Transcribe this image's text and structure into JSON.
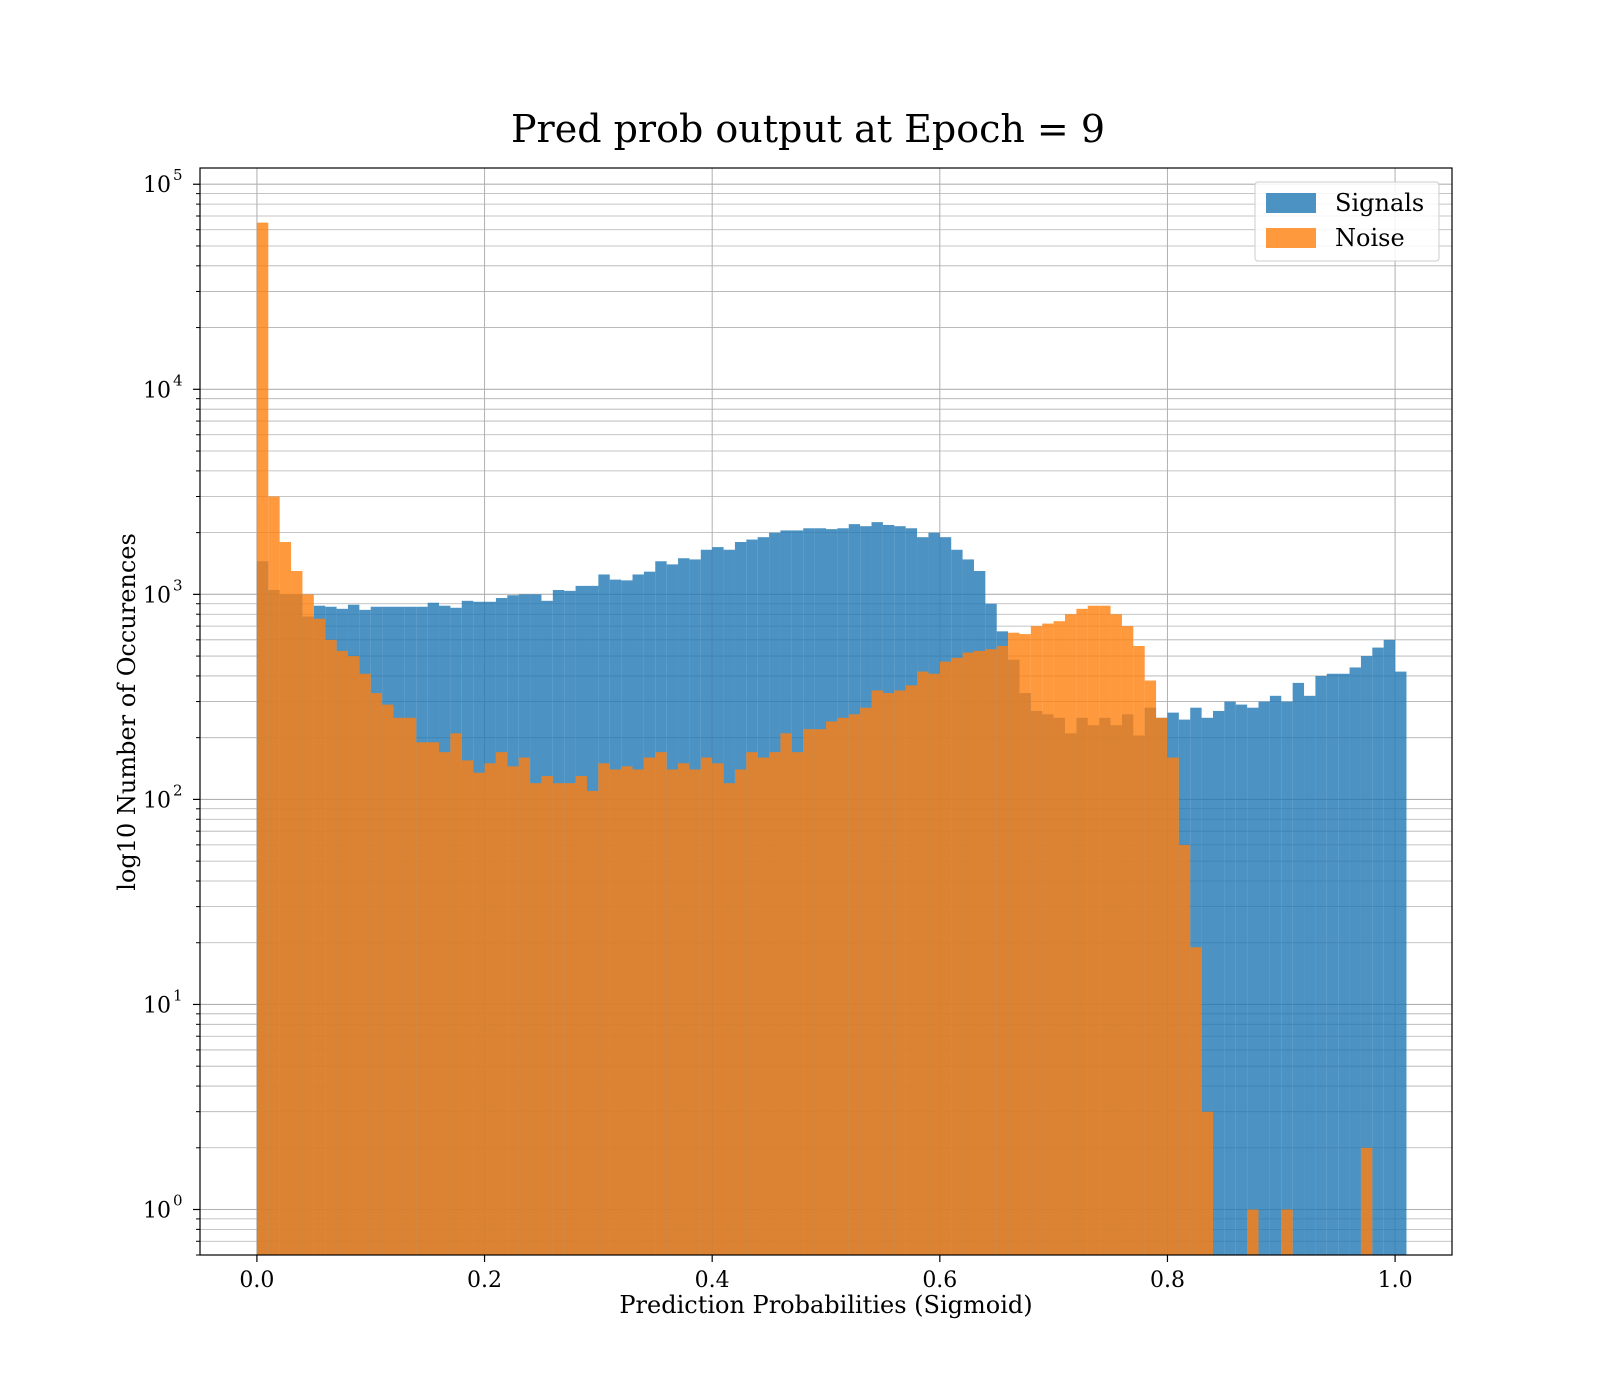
{
  "chart_data": {
    "type": "bar",
    "title": "Pred prob output at Epoch = 9",
    "xlabel": "Prediction Probabilities (Sigmoid)",
    "ylabel": "log10 Number of Occurences",
    "yscale": "log",
    "xlim": [
      -0.05,
      1.05
    ],
    "ylim": [
      0.6,
      120000
    ],
    "grid": true,
    "legend_position": "top-right",
    "bin_width": 0.01,
    "x_ticks": [
      {
        "value": 0.0,
        "label": "0.0"
      },
      {
        "value": 0.2,
        "label": "0.2"
      },
      {
        "value": 0.4,
        "label": "0.4"
      },
      {
        "value": 0.6,
        "label": "0.6"
      },
      {
        "value": 0.8,
        "label": "0.8"
      },
      {
        "value": 1.0,
        "label": "1.0"
      }
    ],
    "y_ticks": [
      {
        "value": 1,
        "base": "10",
        "exp": "0"
      },
      {
        "value": 10,
        "base": "10",
        "exp": "1"
      },
      {
        "value": 100,
        "base": "10",
        "exp": "2"
      },
      {
        "value": 1000,
        "base": "10",
        "exp": "3"
      },
      {
        "value": 10000,
        "base": "10",
        "exp": "4"
      },
      {
        "value": 100000,
        "base": "10",
        "exp": "5"
      }
    ],
    "series": [
      {
        "name": "Signals",
        "color": "#1f77b4",
        "values": [
          1450,
          1050,
          1000,
          1000,
          780,
          880,
          870,
          850,
          890,
          840,
          870,
          870,
          870,
          870,
          870,
          910,
          880,
          860,
          930,
          920,
          920,
          960,
          990,
          1000,
          1000,
          930,
          1050,
          1040,
          1100,
          1100,
          1250,
          1180,
          1170,
          1250,
          1290,
          1450,
          1400,
          1500,
          1480,
          1650,
          1700,
          1650,
          1800,
          1850,
          1900,
          2000,
          2050,
          2050,
          2100,
          2100,
          2080,
          2100,
          2200,
          2150,
          2250,
          2180,
          2150,
          2100,
          1900,
          2000,
          1900,
          1650,
          1480,
          1300,
          900,
          660,
          480,
          330,
          270,
          260,
          250,
          210,
          250,
          230,
          250,
          230,
          260,
          205,
          280,
          250,
          265,
          245,
          280,
          250,
          270,
          300,
          290,
          280,
          300,
          320,
          300,
          370,
          320,
          400,
          410,
          410,
          440,
          500,
          550,
          600,
          420
        ]
      },
      {
        "name": "Noise",
        "color": "#ff7f0e",
        "values": [
          65000,
          3000,
          1800,
          1300,
          1000,
          760,
          600,
          530,
          500,
          410,
          330,
          290,
          250,
          250,
          190,
          190,
          170,
          210,
          155,
          135,
          150,
          170,
          145,
          160,
          120,
          130,
          120,
          120,
          130,
          110,
          150,
          140,
          145,
          140,
          160,
          170,
          140,
          150,
          140,
          160,
          150,
          120,
          140,
          170,
          160,
          170,
          210,
          170,
          220,
          220,
          240,
          250,
          260,
          280,
          340,
          330,
          340,
          360,
          420,
          410,
          470,
          490,
          520,
          530,
          540,
          560,
          650,
          640,
          700,
          720,
          740,
          800,
          850,
          880,
          880,
          800,
          700,
          560,
          380,
          250,
          160,
          60,
          19,
          3,
          0,
          0,
          0,
          1,
          0,
          0,
          1,
          0,
          0,
          0,
          0,
          0,
          0,
          2,
          0,
          0,
          0
        ]
      }
    ]
  }
}
